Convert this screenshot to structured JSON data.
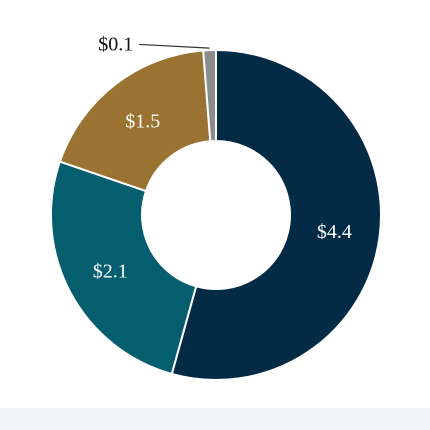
{
  "chart_data": {
    "type": "pie",
    "donut": true,
    "legend": "none",
    "slices": [
      {
        "label": "$4.4",
        "value": 4.4,
        "color": "#032b45",
        "label_color": "#ffffff",
        "label_position": "inside"
      },
      {
        "label": "$2.1",
        "value": 2.1,
        "color": "#045e6e",
        "label_color": "#ffffff",
        "label_position": "inside"
      },
      {
        "label": "$1.5",
        "value": 1.5,
        "color": "#9a7333",
        "label_color": "#ffffff",
        "label_position": "inside"
      },
      {
        "label": "$0.1",
        "value": 0.1,
        "color": "#8c8c8c",
        "label_color": "#111111",
        "label_position": "outside-leader"
      }
    ]
  }
}
